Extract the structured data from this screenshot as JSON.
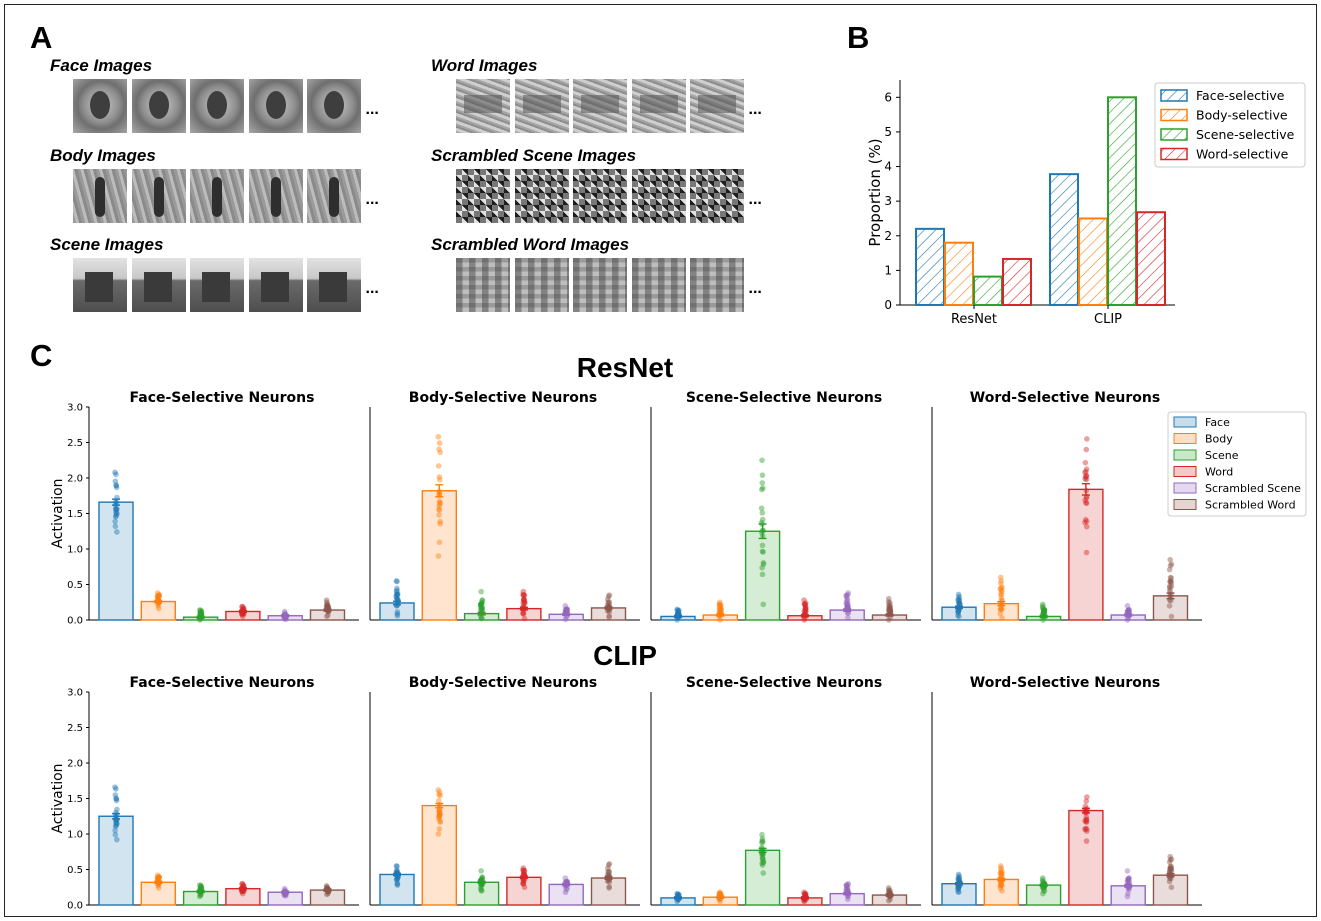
{
  "panel_a": {
    "letter": "A",
    "categories": [
      {
        "title": "Face Images",
        "kind": "face"
      },
      {
        "title": "Body Images",
        "kind": "body"
      },
      {
        "title": "Scene Images",
        "kind": "scene"
      },
      {
        "title": "Word Images",
        "kind": "word"
      },
      {
        "title": "Scrambled Scene Images",
        "kind": "sscene"
      },
      {
        "title": "Scrambled Word Images",
        "kind": "sword"
      }
    ],
    "ellipsis": "..."
  },
  "panel_b": {
    "letter": "B"
  },
  "panel_c": {
    "letter": "C",
    "row_titles": [
      "ResNet",
      "CLIP"
    ]
  },
  "colors": {
    "blue": "#1f77b4",
    "orange": "#ff7f0e",
    "green": "#2ca02c",
    "red": "#d62728",
    "purple": "#9467bd",
    "brown": "#8c564b"
  },
  "chart_data": [
    {
      "type": "bar",
      "panel": "B",
      "categories": [
        "ResNet",
        "CLIP"
      ],
      "series": [
        {
          "name": "Face-selective",
          "values": [
            2.2,
            3.78
          ],
          "color": "#1f77b4"
        },
        {
          "name": "Body-selective",
          "values": [
            1.8,
            2.5
          ],
          "color": "#ff7f0e"
        },
        {
          "name": "Scene-selective",
          "values": [
            0.82,
            6.0
          ],
          "color": "#2ca02c"
        },
        {
          "name": "Word-selective",
          "values": [
            1.33,
            2.68
          ],
          "color": "#d62728"
        }
      ],
      "ylabel": "Proportion (%)",
      "ylim": [
        0,
        6.5
      ],
      "yticks": [
        "0",
        "1",
        "2",
        "3",
        "4",
        "5",
        "6"
      ],
      "hatch": true,
      "legend_position": "top-right"
    },
    {
      "type": "bar",
      "panel": "C",
      "model": "ResNet",
      "conditions": [
        "Face",
        "Body",
        "Scene",
        "Word",
        "Scrambled Scene",
        "Scrambled Word"
      ],
      "condition_colors": [
        "#1f77b4",
        "#ff7f0e",
        "#2ca02c",
        "#d62728",
        "#9467bd",
        "#8c564b"
      ],
      "ylabel": "Activation",
      "ylim": [
        0,
        3.0
      ],
      "yticks": [
        "0.0",
        "0.5",
        "1.0",
        "1.5",
        "2.0",
        "2.5",
        "3.0"
      ],
      "legend_position": "top-right",
      "subplots": [
        {
          "title": "Face-Selective Neurons",
          "values": [
            1.66,
            0.26,
            0.04,
            0.12,
            0.06,
            0.14
          ],
          "ranges": [
            [
              1.24,
              2.08
            ],
            [
              0.16,
              0.38
            ],
            [
              0.0,
              0.14
            ],
            [
              0.05,
              0.19
            ],
            [
              0.01,
              0.12
            ],
            [
              0.05,
              0.28
            ]
          ]
        },
        {
          "title": "Body-Selective Neurons",
          "values": [
            0.24,
            1.82,
            0.09,
            0.16,
            0.08,
            0.17
          ],
          "ranges": [
            [
              0.06,
              0.55
            ],
            [
              0.9,
              2.58
            ],
            [
              0.02,
              0.4
            ],
            [
              0.02,
              0.4
            ],
            [
              0.01,
              0.2
            ],
            [
              0.04,
              0.35
            ]
          ]
        },
        {
          "title": "Scene-Selective Neurons",
          "values": [
            0.05,
            0.07,
            1.25,
            0.06,
            0.14,
            0.07
          ],
          "ranges": [
            [
              0.0,
              0.15
            ],
            [
              0.0,
              0.25
            ],
            [
              0.22,
              2.25
            ],
            [
              0.0,
              0.28
            ],
            [
              0.03,
              0.38
            ],
            [
              0.0,
              0.3
            ]
          ]
        },
        {
          "title": "Word-Selective Neurons",
          "values": [
            0.18,
            0.23,
            0.05,
            1.84,
            0.07,
            0.34
          ],
          "ranges": [
            [
              0.05,
              0.36
            ],
            [
              0.03,
              0.6
            ],
            [
              0.0,
              0.22
            ],
            [
              0.95,
              2.55
            ],
            [
              0.0,
              0.2
            ],
            [
              0.05,
              0.85
            ]
          ]
        }
      ]
    },
    {
      "type": "bar",
      "panel": "C",
      "model": "CLIP",
      "conditions": [
        "Face",
        "Body",
        "Scene",
        "Word",
        "Scrambled Scene",
        "Scrambled Word"
      ],
      "condition_colors": [
        "#1f77b4",
        "#ff7f0e",
        "#2ca02c",
        "#d62728",
        "#9467bd",
        "#8c564b"
      ],
      "ylabel": "Activation",
      "ylim": [
        0,
        3.0
      ],
      "yticks": [
        "0.0",
        "0.5",
        "1.0",
        "1.5",
        "2.0",
        "2.5",
        "3.0"
      ],
      "subplots": [
        {
          "title": "Face-Selective Neurons",
          "values": [
            1.25,
            0.32,
            0.19,
            0.23,
            0.18,
            0.21
          ],
          "ranges": [
            [
              0.92,
              1.66
            ],
            [
              0.24,
              0.42
            ],
            [
              0.12,
              0.28
            ],
            [
              0.16,
              0.3
            ],
            [
              0.13,
              0.23
            ],
            [
              0.15,
              0.27
            ]
          ]
        },
        {
          "title": "Body-Selective Neurons",
          "values": [
            0.43,
            1.4,
            0.32,
            0.39,
            0.29,
            0.38
          ],
          "ranges": [
            [
              0.28,
              0.55
            ],
            [
              1.0,
              1.62
            ],
            [
              0.2,
              0.48
            ],
            [
              0.25,
              0.52
            ],
            [
              0.18,
              0.38
            ],
            [
              0.24,
              0.58
            ]
          ]
        },
        {
          "title": "Scene-Selective Neurons",
          "values": [
            0.1,
            0.11,
            0.77,
            0.1,
            0.16,
            0.14
          ],
          "ranges": [
            [
              0.05,
              0.16
            ],
            [
              0.05,
              0.18
            ],
            [
              0.45,
              0.99
            ],
            [
              0.05,
              0.18
            ],
            [
              0.08,
              0.3
            ],
            [
              0.06,
              0.24
            ]
          ]
        },
        {
          "title": "Word-Selective Neurons",
          "values": [
            0.3,
            0.36,
            0.28,
            1.33,
            0.27,
            0.42
          ],
          "ranges": [
            [
              0.18,
              0.43
            ],
            [
              0.2,
              0.55
            ],
            [
              0.16,
              0.38
            ],
            [
              0.9,
              1.52
            ],
            [
              0.12,
              0.48
            ],
            [
              0.25,
              0.68
            ]
          ]
        }
      ]
    }
  ]
}
